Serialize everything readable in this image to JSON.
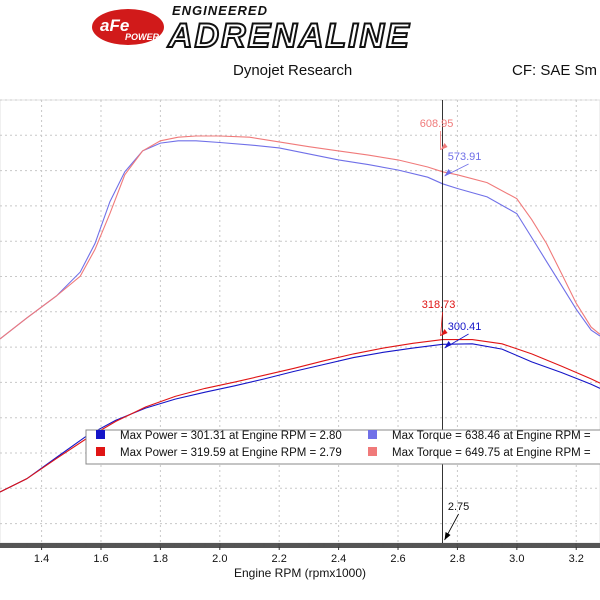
{
  "header": {
    "brand_badge": "aFe",
    "brand_badge_sub": "POWER",
    "brand_top": "ENGINEERED",
    "brand_main": "ADRENALINE",
    "source": "Dynojet Research",
    "correction": "CF: SAE Sm"
  },
  "colors": {
    "power_baseline": "#1515c8",
    "power_afe": "#e01515",
    "torque_baseline": "#7070e8",
    "torque_afe": "#f07a7a",
    "grid": "#c8c8c8",
    "cursor": "#000000"
  },
  "chart_data": {
    "type": "line",
    "title": "",
    "xlabel": "Engine RPM (rpmx1000)",
    "ylabel": "",
    "xlim": [
      1.26,
      3.28
    ],
    "x_ticks": [
      1.4,
      1.6,
      1.8,
      2.0,
      2.2,
      2.4,
      2.6,
      2.8,
      3.0,
      3.2
    ],
    "grid": true,
    "cursor": {
      "x": 2.75,
      "label": "2.75"
    },
    "series": [
      {
        "name": "",
        "kind": "torque",
        "color": "#7070e8",
        "cursor_value": "573.91",
        "x": [
          1.26,
          1.35,
          1.45,
          1.53,
          1.58,
          1.63,
          1.68,
          1.74,
          1.8,
          1.86,
          1.92,
          2.0,
          2.1,
          2.2,
          2.3,
          2.4,
          2.5,
          2.6,
          2.7,
          2.75,
          2.8,
          2.9,
          3.0,
          3.05,
          3.1,
          3.15,
          3.2,
          3.25,
          3.28
        ],
        "y": [
          390,
          425,
          462,
          502,
          550,
          620,
          670,
          705,
          718,
          722,
          722,
          719,
          715,
          710,
          700,
          690,
          682,
          673,
          661,
          650,
          642,
          628,
          600,
          560,
          520,
          480,
          440,
          405,
          395
        ]
      },
      {
        "name": "",
        "kind": "torque",
        "color": "#f07a7a",
        "cursor_value": "608.95",
        "x": [
          1.26,
          1.35,
          1.45,
          1.53,
          1.58,
          1.63,
          1.68,
          1.74,
          1.8,
          1.86,
          1.92,
          2.0,
          2.1,
          2.2,
          2.3,
          2.4,
          2.5,
          2.6,
          2.7,
          2.75,
          2.8,
          2.9,
          3.0,
          3.05,
          3.1,
          3.15,
          3.2,
          3.25,
          3.28
        ],
        "y": [
          390,
          425,
          462,
          495,
          540,
          600,
          665,
          705,
          722,
          728,
          730,
          730,
          728,
          720,
          712,
          705,
          698,
          690,
          678,
          670,
          665,
          652,
          625,
          590,
          550,
          500,
          450,
          410,
          398
        ]
      },
      {
        "name": "",
        "kind": "power",
        "color": "#1515c8",
        "cursor_value": "300.41",
        "x": [
          1.26,
          1.35,
          1.45,
          1.55,
          1.65,
          1.75,
          1.85,
          1.95,
          2.05,
          2.15,
          2.25,
          2.35,
          2.45,
          2.55,
          2.65,
          2.75,
          2.85,
          2.95,
          3.05,
          3.15,
          3.25,
          3.28
        ],
        "y": [
          115,
          140,
          180,
          220,
          250,
          273,
          290,
          303,
          315,
          328,
          342,
          355,
          368,
          378,
          386,
          393,
          394,
          384,
          360,
          340,
          318,
          310
        ]
      },
      {
        "name": "",
        "kind": "power",
        "color": "#e01515",
        "cursor_value": "318.73",
        "x": [
          1.26,
          1.35,
          1.45,
          1.55,
          1.65,
          1.75,
          1.85,
          1.95,
          2.05,
          2.15,
          2.25,
          2.35,
          2.45,
          2.55,
          2.65,
          2.75,
          2.85,
          2.95,
          3.05,
          3.15,
          3.25,
          3.28
        ],
        "y": [
          115,
          140,
          178,
          215,
          248,
          275,
          295,
          310,
          322,
          335,
          348,
          362,
          375,
          386,
          395,
          402,
          402,
          394,
          375,
          352,
          328,
          320
        ]
      }
    ],
    "legend": [
      {
        "color": "#1515c8",
        "text": "Max Power = 301.31 at Engine RPM = 2.80"
      },
      {
        "color": "#e01515",
        "text": "Max Power = 319.59 at Engine RPM = 2.79"
      },
      {
        "color": "#7070e8",
        "text": "Max Torque = 638.46 at Engine RPM = "
      },
      {
        "color": "#f07a7a",
        "text": "Max Torque = 649.75 at Engine RPM = "
      }
    ],
    "legend_placement": "lower-right"
  }
}
